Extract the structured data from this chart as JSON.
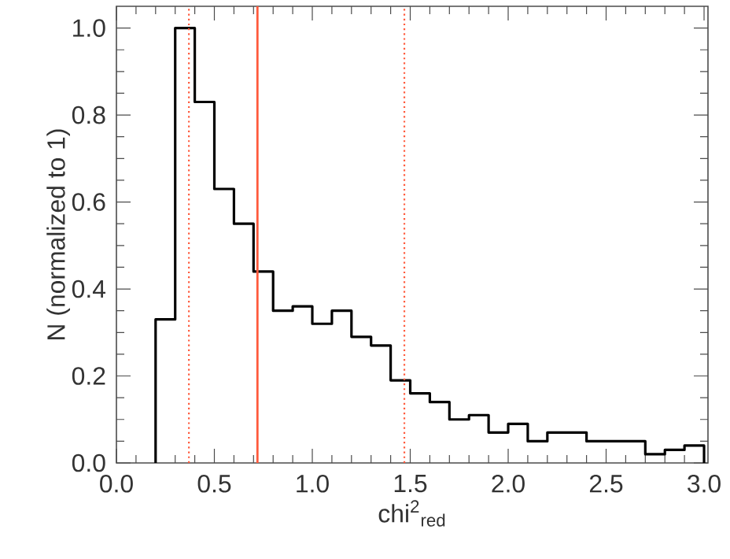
{
  "chart_data": {
    "type": "histogram",
    "xlabel": "chi$^{2}$$_{red}$",
    "ylabel": "N (normalized to 1)",
    "bins": [
      0.2,
      0.3,
      0.4,
      0.5,
      0.6,
      0.7,
      0.8,
      0.9,
      1.0,
      1.1,
      1.2,
      1.3,
      1.4,
      1.5,
      1.6,
      1.7,
      1.8,
      1.9,
      2.0,
      2.1,
      2.2,
      2.3,
      2.4,
      2.5,
      2.6,
      2.7,
      2.8,
      2.9,
      3.0
    ],
    "values": [
      0.33,
      1.0,
      0.83,
      0.63,
      0.55,
      0.44,
      0.35,
      0.36,
      0.32,
      0.35,
      0.29,
      0.27,
      0.19,
      0.16,
      0.14,
      0.1,
      0.11,
      0.07,
      0.09,
      0.05,
      0.07,
      0.07,
      0.05,
      0.05,
      0.05,
      0.02,
      0.03,
      0.04
    ],
    "color": "#000000",
    "xlim": [
      0,
      3.02
    ],
    "ylim": [
      0,
      1.05
    ],
    "xticks": [
      {
        "value": 0,
        "label": "0.0"
      },
      {
        "value": 0.5,
        "label": "0.5"
      },
      {
        "value": 1,
        "label": "1.0"
      },
      {
        "value": 1.5,
        "label": "1.5"
      },
      {
        "value": 2,
        "label": "2.0"
      },
      {
        "value": 2.5,
        "label": "2.5"
      },
      {
        "value": 3,
        "label": "3.0"
      }
    ],
    "yticks": [
      {
        "value": 0,
        "label": "0.0"
      },
      {
        "value": 0.2,
        "label": "0.2"
      },
      {
        "value": 0.4,
        "label": "0.4"
      },
      {
        "value": 0.6,
        "label": "0.6"
      },
      {
        "value": 0.8,
        "label": "0.8"
      },
      {
        "value": 1,
        "label": "1.0"
      }
    ],
    "ref_lines": [
      {
        "axis": "x",
        "value": 0.37,
        "color": "#ff5a3c",
        "line_style": "dotted"
      },
      {
        "axis": "x",
        "value": 0.72,
        "color": "#ff5a3c",
        "line_style": "solid"
      },
      {
        "axis": "x",
        "value": 1.47,
        "color": "#ff5a3c",
        "line_style": "dotted"
      }
    ],
    "grid": false
  }
}
